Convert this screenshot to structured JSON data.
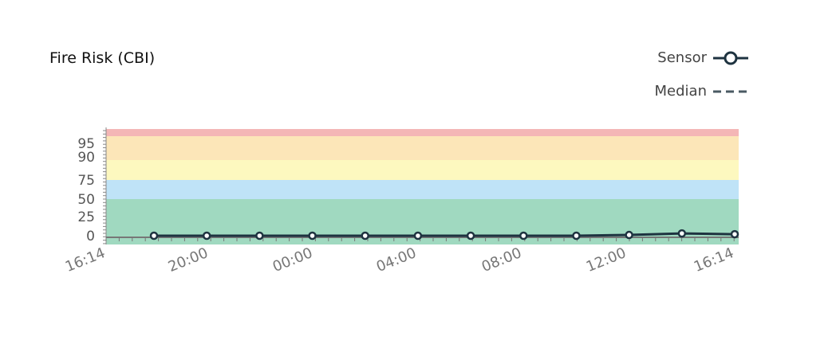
{
  "title": "Fire Risk (CBI)",
  "legend": {
    "sensor": "Sensor",
    "median": "Median"
  },
  "chart_data": {
    "type": "line",
    "title": "Fire Risk (CBI)",
    "y_ticks": [
      0,
      25,
      50,
      75,
      90,
      95
    ],
    "y_scale": "piecewise",
    "x_tick_labels": [
      "16:14",
      "20:00",
      "00:00",
      "04:00",
      "08:00",
      "12:00",
      "16:14"
    ],
    "bands": [
      {
        "from": -5,
        "to": 50,
        "color": "#a0d9c0"
      },
      {
        "from": 50,
        "to": 75,
        "color": "#bfe3f7"
      },
      {
        "from": 75,
        "to": 88,
        "color": "#fdf8bf"
      },
      {
        "from": 88,
        "to": 98,
        "color": "#fce6b8"
      },
      {
        "from": 98,
        "to": 100,
        "color": "#f4b6b6"
      }
    ],
    "series": [
      {
        "name": "Sensor",
        "color": "#1e3340",
        "x": [
          "18:00",
          "20:00",
          "22:00",
          "00:00",
          "02:00",
          "04:00",
          "06:00",
          "08:00",
          "10:00",
          "12:00",
          "14:00",
          "16:14"
        ],
        "values": [
          0,
          0,
          0,
          0,
          0,
          0,
          0,
          0,
          0,
          1,
          3,
          2
        ]
      }
    ]
  }
}
